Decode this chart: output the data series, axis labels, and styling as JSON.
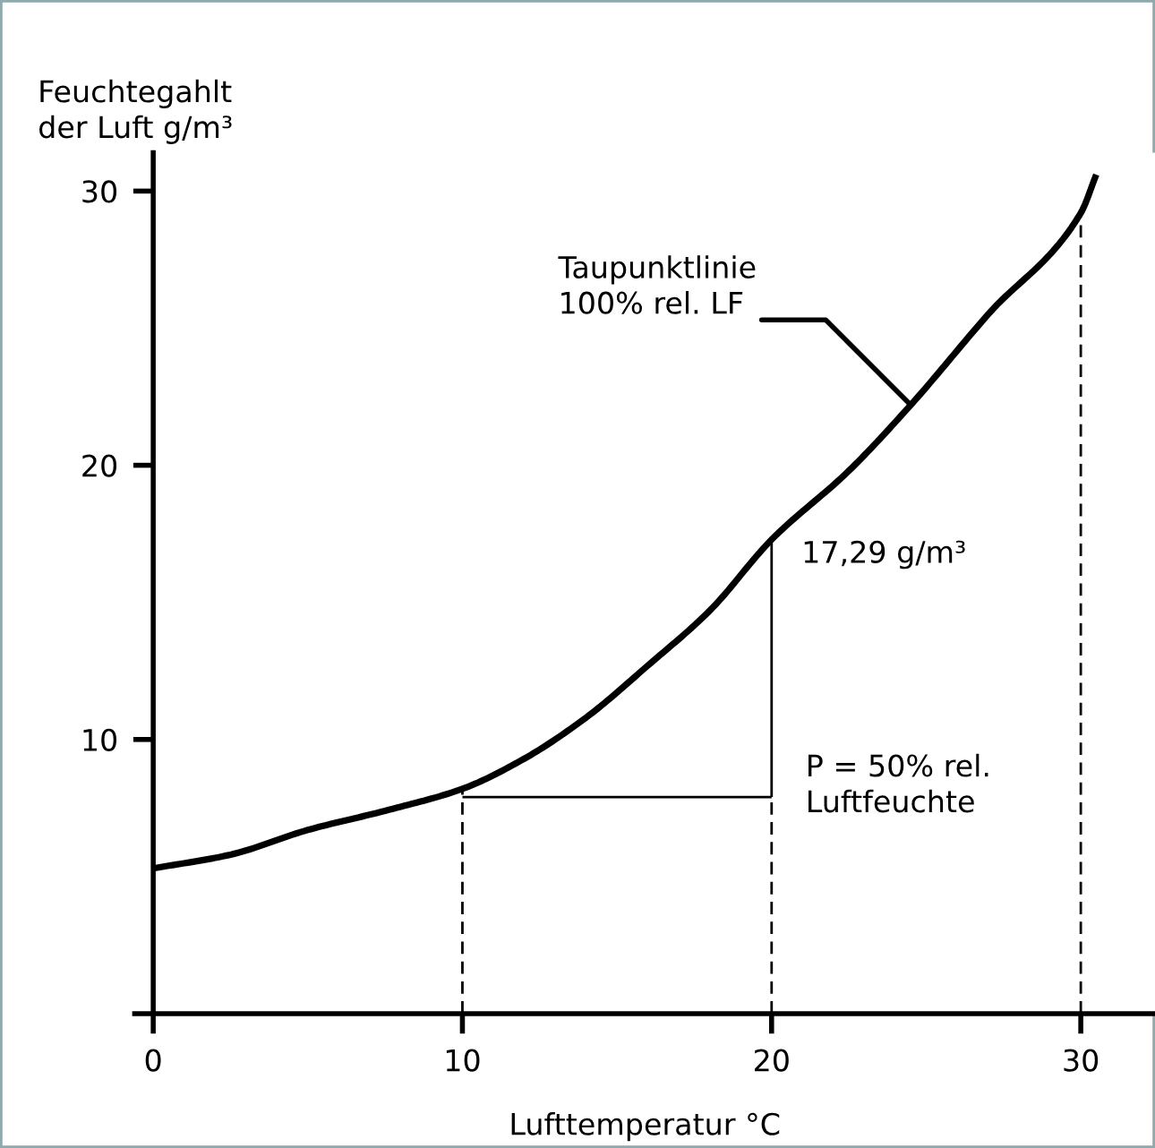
{
  "chart_data": {
    "type": "line",
    "xlabel": "Lufttemperatur °C",
    "ylabel": "Feuchtegahlt\nder Luft g/m³",
    "xlim": [
      -0.6,
      32.4
    ],
    "ylim": [
      0,
      31.4
    ],
    "xticks": [
      0,
      10,
      20,
      30
    ],
    "yticks": [
      10,
      20,
      30
    ],
    "grid": false,
    "legend": false,
    "marker": "none",
    "series": [
      {
        "color": "#000000",
        "x": [
          0,
          2.5,
          5,
          7.5,
          10,
          12,
          14,
          16,
          18,
          20,
          22.5,
          24.5,
          27,
          30,
          30.5
        ],
        "values": [
          5.3,
          5.8,
          6.7,
          7.4,
          8.2,
          9.3,
          10.8,
          12.7,
          14.7,
          17.29,
          19.8,
          22.2,
          25.5,
          29.2,
          30.6
        ],
        "line_style": "solid"
      },
      {
        "color": "#000000",
        "x": [
          10,
          10
        ],
        "values": [
          0,
          8.2
        ],
        "line_style": "dashed"
      },
      {
        "color": "#000000",
        "x": [
          20,
          20
        ],
        "values": [
          0,
          7.9
        ],
        "line_style": "dashed"
      },
      {
        "color": "#000000",
        "x": [
          30,
          30
        ],
        "values": [
          0,
          29.2
        ],
        "line_style": "dashed"
      },
      {
        "color": "#000000",
        "x": [
          20,
          20
        ],
        "values": [
          7.9,
          17.29
        ],
        "line_style": "solid"
      },
      {
        "color": "#000000",
        "x": [
          10,
          20
        ],
        "values": [
          7.9,
          7.9
        ],
        "line_style": "solid"
      }
    ],
    "annotations": [
      {
        "text": "Taupunktlinie\n100% rel. LF",
        "x": 24.5,
        "y": 22.2
      },
      {
        "text": "17,29 g/m³",
        "x": 20,
        "y": 17.29
      },
      "P = 50% rel.\nLuftfeuchte"
    ]
  }
}
